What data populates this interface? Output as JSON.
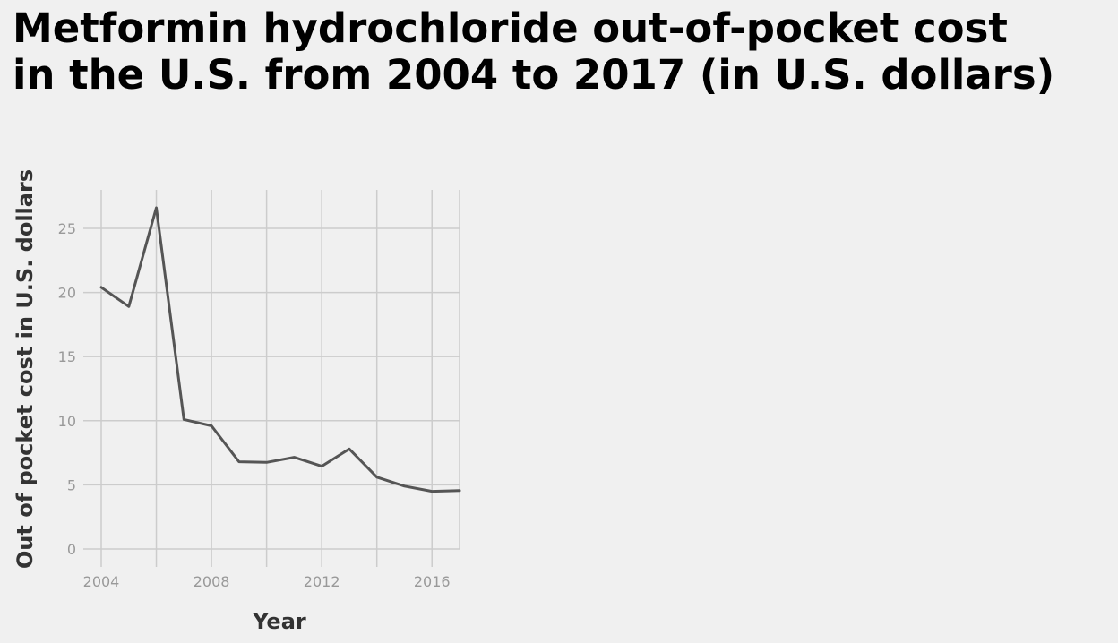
{
  "chart_data": {
    "type": "line",
    "title_lines": [
      "Metformin hydrochloride out-of-pocket cost",
      "in the U.S. from 2004 to 2017 (in U.S. dollars)"
    ],
    "xlabel": "Year",
    "ylabel": "Out of pocket cost in U.S. dollars",
    "xlim": [
      2004,
      2017
    ],
    "ylim": [
      0,
      28
    ],
    "x_ticks": [
      2004,
      2008,
      2012,
      2016
    ],
    "y_ticks": [
      0,
      5,
      10,
      15,
      20,
      25
    ],
    "grid": true,
    "legend": "none",
    "colors": {
      "line": "#555555",
      "grid": "#cccccc",
      "background": "#f0f0f0"
    },
    "series": [
      {
        "x": [
          2004,
          2005,
          2006,
          2007,
          2008,
          2009,
          2010,
          2011,
          2012,
          2013,
          2014,
          2015,
          2016,
          2017
        ],
        "values": [
          20.4,
          18.9,
          26.6,
          10.1,
          9.6,
          6.8,
          6.75,
          7.15,
          6.45,
          7.8,
          5.6,
          4.9,
          4.5,
          4.55
        ]
      }
    ]
  }
}
